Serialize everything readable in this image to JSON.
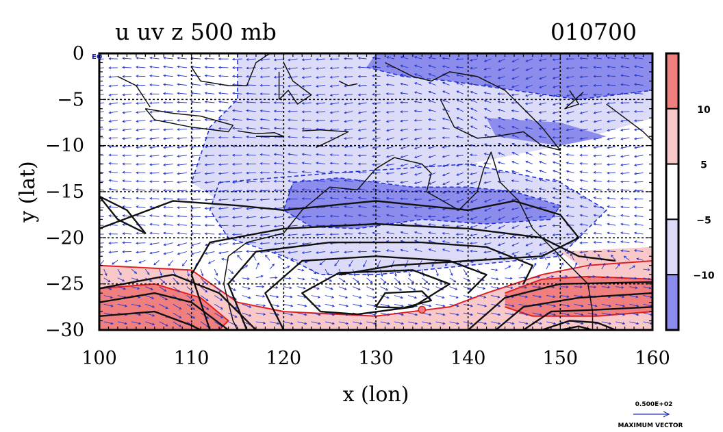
{
  "chart_data": {
    "type": "heatmap",
    "title": "u uv z 500 mb",
    "date_label": "010700",
    "xlabel": "x (lon)",
    "ylabel": "y (lat)",
    "xlim": [
      100,
      160
    ],
    "ylim": [
      -30,
      0
    ],
    "x_ticks": [
      100,
      110,
      120,
      130,
      140,
      150,
      160
    ],
    "y_ticks": [
      0,
      -5,
      -10,
      -15,
      -20,
      -25,
      -30
    ],
    "y_tick_labels": [
      "0",
      "−5",
      "−10",
      "−15",
      "−20",
      "−25",
      "−30"
    ],
    "corner_label": "EQ",
    "grid": true,
    "shaded_variable": "u",
    "colorbar": {
      "levels": [
        -15,
        -10,
        -5,
        5,
        10,
        15
      ],
      "tick_labels": [
        "10",
        "5",
        "−5",
        "−10"
      ],
      "colors": [
        "#f08080",
        "#f9c8c8",
        "#ffffff",
        "#dcdcf8",
        "#8c8cec"
      ]
    },
    "shaded_regions": [
      {
        "level": "u < -10",
        "color": "#8c8cec",
        "region": "north coast and Arafura Sea band, 122–145 E, 14–19 S"
      },
      {
        "level": "-10 < u < -5",
        "color": "#dcdcf8",
        "region": "tropics 115–160 E, 0–24 S"
      },
      {
        "level": "5 < u < 10",
        "color": "#f9c8c8",
        "region": "south of 23 S, 100–160 E"
      },
      {
        "level": "u > 10",
        "color": "#f08080",
        "region": "jet core 144–160 E, 25–28 S"
      }
    ],
    "contour_variable": "z",
    "vector_variable": "uv",
    "vector_reference": {
      "value": "0.500E+02",
      "label": "MAXIMUM VECTOR"
    }
  }
}
